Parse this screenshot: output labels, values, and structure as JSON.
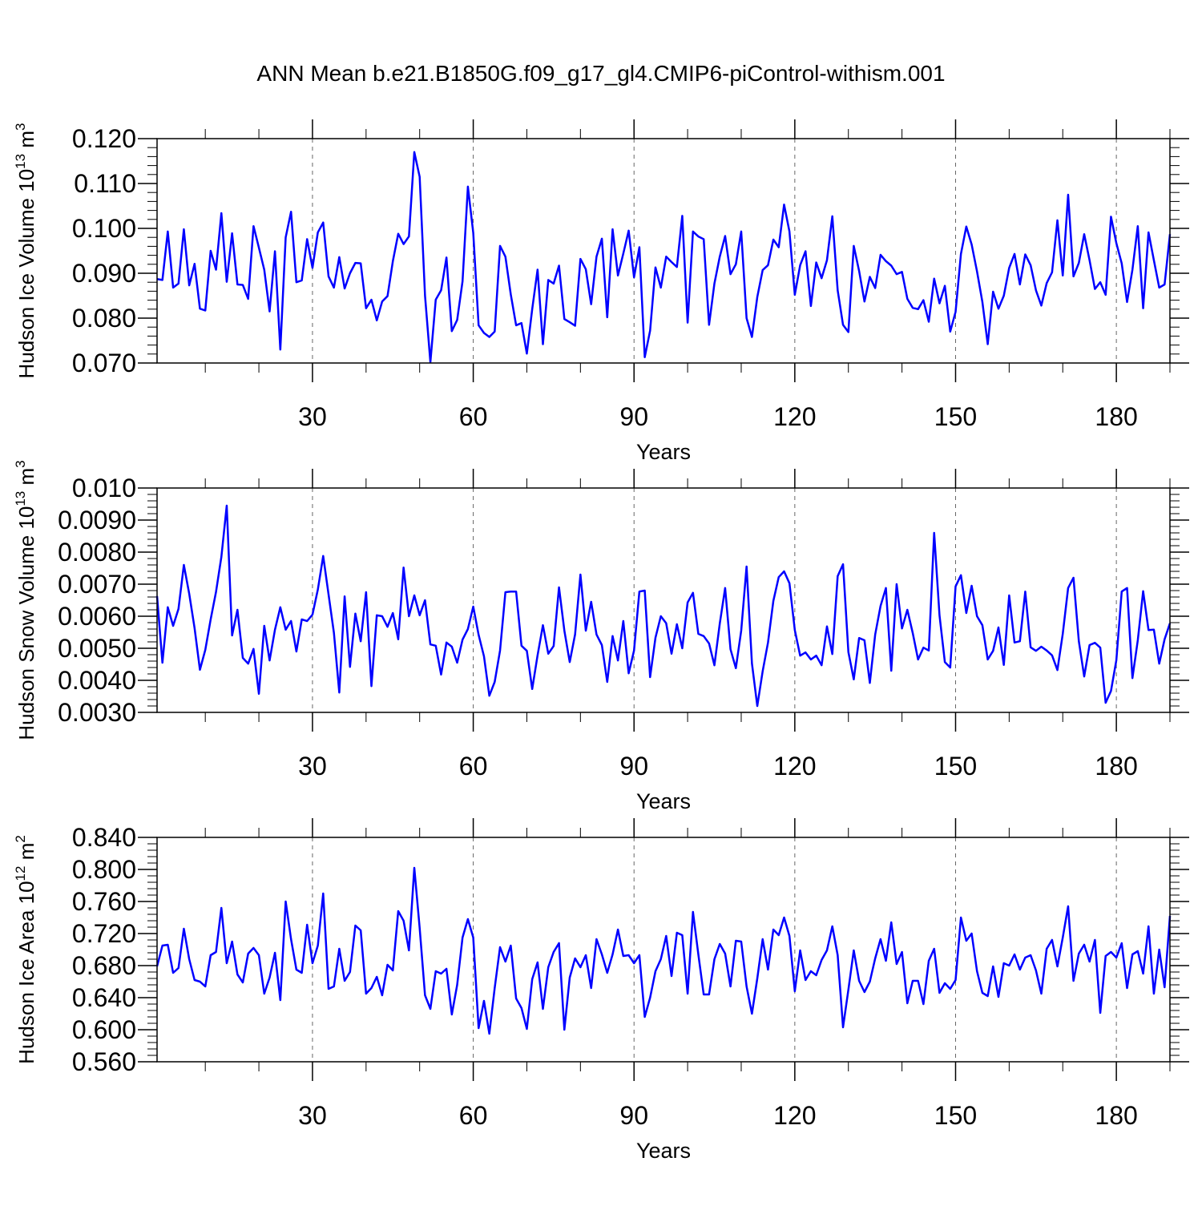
{
  "title": "ANN Mean b.e21.B1850G.f09_g17_gl4.CMIP6-piControl-withism.001",
  "line_color": "#0000ff",
  "chart_data": [
    {
      "type": "line",
      "ylabel": "Hudson Ice Volume",
      "yunit": {
        "base": "10",
        "exp": "13",
        "unit": "m",
        "unit_exp": "3"
      },
      "xlabel": "Years",
      "xlim": [
        1,
        190
      ],
      "ylim": [
        0.07,
        0.12
      ],
      "yticks": [
        0.07,
        0.08,
        0.09,
        0.1,
        0.11,
        0.12
      ],
      "ytick_labels": [
        "0.070",
        "0.080",
        "0.090",
        "0.100",
        "0.110",
        "0.120"
      ],
      "xticks": [
        30,
        60,
        90,
        120,
        150,
        180
      ],
      "xtick_labels": [
        "30",
        "60",
        "90",
        "120",
        "150",
        "180"
      ],
      "grid": "vertical dashed at major x ticks",
      "series": [
        {
          "values": [
            0.0887,
            0.0885,
            0.0993,
            0.0868,
            0.0877,
            0.0998,
            0.0873,
            0.0921,
            0.0821,
            0.0817,
            0.095,
            0.0908,
            0.1034,
            0.0881,
            0.0989,
            0.0875,
            0.0874,
            0.0843,
            0.1005,
            0.0957,
            0.0908,
            0.0815,
            0.0949,
            0.073,
            0.098,
            0.1037,
            0.088,
            0.0884,
            0.0976,
            0.0912,
            0.0991,
            0.1013,
            0.0893,
            0.0868,
            0.0936,
            0.0866,
            0.09,
            0.0923,
            0.0922,
            0.0822,
            0.0841,
            0.0795,
            0.0837,
            0.0849,
            0.0927,
            0.0988,
            0.0965,
            0.0982,
            0.117,
            0.1115,
            0.085,
            0.0702,
            0.0841,
            0.0862,
            0.0935,
            0.0771,
            0.0796,
            0.0882,
            0.1093,
            0.099,
            0.0784,
            0.0767,
            0.0758,
            0.077,
            0.0961,
            0.0937,
            0.0853,
            0.0784,
            0.0789,
            0.0721,
            0.082,
            0.0908,
            0.0742,
            0.0885,
            0.0877,
            0.0917,
            0.0798,
            0.0791,
            0.0783,
            0.0932,
            0.0909,
            0.0831,
            0.0937,
            0.0977,
            0.0802,
            0.0998,
            0.0895,
            0.0944,
            0.0995,
            0.0891,
            0.0958,
            0.0713,
            0.0772,
            0.0913,
            0.0868,
            0.0937,
            0.0925,
            0.0914,
            0.1028,
            0.079,
            0.0993,
            0.0982,
            0.0976,
            0.0785,
            0.0877,
            0.0937,
            0.0983,
            0.0898,
            0.092,
            0.0993,
            0.08,
            0.0758,
            0.0847,
            0.0907,
            0.0918,
            0.0975,
            0.0958,
            0.1053,
            0.0993,
            0.0852,
            0.0918,
            0.0949,
            0.0827,
            0.0924,
            0.0889,
            0.0929,
            0.1027,
            0.0862,
            0.0785,
            0.0769,
            0.0961,
            0.0905,
            0.0837,
            0.0892,
            0.0867,
            0.0941,
            0.0927,
            0.0917,
            0.0898,
            0.0903,
            0.0843,
            0.0823,
            0.082,
            0.084,
            0.0792,
            0.0888,
            0.0833,
            0.0872,
            0.077,
            0.0814,
            0.0943,
            0.1004,
            0.0964,
            0.0904,
            0.0836,
            0.0742,
            0.0859,
            0.0821,
            0.085,
            0.0912,
            0.0943,
            0.0875,
            0.0942,
            0.0918,
            0.0862,
            0.0828,
            0.0878,
            0.0902,
            0.1018,
            0.0895,
            0.1075,
            0.0893,
            0.0923,
            0.0987,
            0.0929,
            0.0865,
            0.088,
            0.0852,
            0.1026,
            0.0967,
            0.0922,
            0.0836,
            0.0908,
            0.1005,
            0.0822,
            0.0991,
            0.0929,
            0.0868,
            0.0875,
            0.0987
          ]
        }
      ]
    },
    {
      "type": "line",
      "ylabel": "Hudson Snow Volume",
      "yunit": {
        "base": "10",
        "exp": "13",
        "unit": "m",
        "unit_exp": "3"
      },
      "xlabel": "Years",
      "xlim": [
        1,
        190
      ],
      "ylim": [
        0.003,
        0.01
      ],
      "yticks": [
        0.003,
        0.004,
        0.005,
        0.006,
        0.007,
        0.008,
        0.009,
        0.01
      ],
      "ytick_labels": [
        "0.0030",
        "0.0040",
        "0.0050",
        "0.0060",
        "0.0070",
        "0.0080",
        "0.0090",
        "0.010"
      ],
      "xticks": [
        30,
        60,
        90,
        120,
        150,
        180
      ],
      "xtick_labels": [
        "30",
        "60",
        "90",
        "120",
        "150",
        "180"
      ],
      "grid": "vertical dashed at major x ticks",
      "series": [
        {
          "values": [
            0.00663,
            0.00455,
            0.00628,
            0.0057,
            0.00623,
            0.0076,
            0.0067,
            0.00563,
            0.00433,
            0.00495,
            0.0059,
            0.00676,
            0.00785,
            0.00945,
            0.0054,
            0.0062,
            0.0047,
            0.00452,
            0.00498,
            0.00358,
            0.0057,
            0.00462,
            0.00558,
            0.00628,
            0.00558,
            0.00585,
            0.0049,
            0.0059,
            0.00585,
            0.00605,
            0.00683,
            0.00788,
            0.00668,
            0.00548,
            0.00362,
            0.00662,
            0.00442,
            0.00608,
            0.00522,
            0.00675,
            0.00382,
            0.00603,
            0.006,
            0.00567,
            0.0061,
            0.00528,
            0.00752,
            0.006,
            0.00665,
            0.00603,
            0.0065,
            0.00512,
            0.00508,
            0.00418,
            0.00518,
            0.00505,
            0.00455,
            0.00527,
            0.0056,
            0.0063,
            0.00542,
            0.00475,
            0.00352,
            0.00395,
            0.00493,
            0.00675,
            0.00677,
            0.00677,
            0.00508,
            0.00492,
            0.00373,
            0.00478,
            0.00572,
            0.00483,
            0.00507,
            0.0069,
            0.00555,
            0.00457,
            0.00543,
            0.0073,
            0.00555,
            0.00645,
            0.00543,
            0.0051,
            0.00395,
            0.00538,
            0.00462,
            0.00585,
            0.00422,
            0.00493,
            0.00677,
            0.0068,
            0.0041,
            0.00533,
            0.006,
            0.00578,
            0.00483,
            0.00575,
            0.005,
            0.00643,
            0.00673,
            0.00545,
            0.00538,
            0.00515,
            0.00447,
            0.00577,
            0.00688,
            0.00497,
            0.00438,
            0.00555,
            0.00755,
            0.00453,
            0.0032,
            0.00428,
            0.00518,
            0.00648,
            0.00722,
            0.0074,
            0.00703,
            0.00557,
            0.00477,
            0.00487,
            0.00465,
            0.00477,
            0.00447,
            0.00568,
            0.00482,
            0.00725,
            0.00762,
            0.00488,
            0.00403,
            0.00532,
            0.00525,
            0.00392,
            0.00543,
            0.00632,
            0.00688,
            0.0043,
            0.007,
            0.00562,
            0.0062,
            0.00548,
            0.00465,
            0.00502,
            0.00493,
            0.0086,
            0.00603,
            0.00457,
            0.0044,
            0.00693,
            0.00728,
            0.0061,
            0.00695,
            0.006,
            0.00572,
            0.00465,
            0.00492,
            0.00565,
            0.00448,
            0.00665,
            0.00518,
            0.00522,
            0.00677,
            0.00503,
            0.00492,
            0.00505,
            0.00493,
            0.00478,
            0.00432,
            0.00545,
            0.00688,
            0.0072,
            0.00522,
            0.00412,
            0.0051,
            0.00517,
            0.00502,
            0.0033,
            0.00367,
            0.00463,
            0.00677,
            0.00688,
            0.00407,
            0.00525,
            0.00678,
            0.00557,
            0.00558,
            0.00452,
            0.00528,
            0.00578
          ]
        }
      ]
    },
    {
      "type": "line",
      "ylabel": "Hudson Ice Area",
      "yunit": {
        "base": "10",
        "exp": "12",
        "unit": "m",
        "unit_exp": "2"
      },
      "xlabel": "Years",
      "xlim": [
        1,
        190
      ],
      "ylim": [
        0.56,
        0.84
      ],
      "yticks": [
        0.56,
        0.6,
        0.64,
        0.68,
        0.72,
        0.76,
        0.8,
        0.84
      ],
      "ytick_labels": [
        "0.560",
        "0.600",
        "0.640",
        "0.680",
        "0.720",
        "0.760",
        "0.800",
        "0.840"
      ],
      "xticks": [
        30,
        60,
        90,
        120,
        150,
        180
      ],
      "xtick_labels": [
        "30",
        "60",
        "90",
        "120",
        "150",
        "180"
      ],
      "grid": "vertical dashed at major x ticks",
      "series": [
        {
          "values": [
            0.679,
            0.705,
            0.706,
            0.671,
            0.677,
            0.726,
            0.688,
            0.662,
            0.66,
            0.654,
            0.693,
            0.697,
            0.752,
            0.683,
            0.71,
            0.669,
            0.659,
            0.695,
            0.702,
            0.693,
            0.645,
            0.665,
            0.696,
            0.637,
            0.76,
            0.713,
            0.675,
            0.671,
            0.731,
            0.683,
            0.705,
            0.77,
            0.651,
            0.654,
            0.701,
            0.661,
            0.672,
            0.73,
            0.724,
            0.645,
            0.652,
            0.666,
            0.643,
            0.681,
            0.674,
            0.748,
            0.736,
            0.699,
            0.802,
            0.727,
            0.643,
            0.626,
            0.673,
            0.67,
            0.676,
            0.619,
            0.656,
            0.715,
            0.738,
            0.715,
            0.602,
            0.636,
            0.595,
            0.652,
            0.703,
            0.685,
            0.705,
            0.639,
            0.627,
            0.601,
            0.663,
            0.684,
            0.626,
            0.678,
            0.697,
            0.708,
            0.6,
            0.665,
            0.689,
            0.678,
            0.693,
            0.652,
            0.713,
            0.694,
            0.671,
            0.694,
            0.725,
            0.692,
            0.693,
            0.683,
            0.693,
            0.616,
            0.64,
            0.673,
            0.688,
            0.717,
            0.667,
            0.721,
            0.718,
            0.645,
            0.747,
            0.694,
            0.644,
            0.644,
            0.688,
            0.707,
            0.695,
            0.654,
            0.711,
            0.71,
            0.654,
            0.62,
            0.664,
            0.713,
            0.675,
            0.725,
            0.718,
            0.74,
            0.717,
            0.648,
            0.699,
            0.662,
            0.673,
            0.668,
            0.687,
            0.699,
            0.729,
            0.693,
            0.603,
            0.65,
            0.699,
            0.661,
            0.647,
            0.66,
            0.689,
            0.713,
            0.686,
            0.734,
            0.682,
            0.697,
            0.633,
            0.661,
            0.661,
            0.632,
            0.686,
            0.701,
            0.646,
            0.658,
            0.651,
            0.662,
            0.74,
            0.711,
            0.72,
            0.673,
            0.646,
            0.642,
            0.679,
            0.641,
            0.683,
            0.68,
            0.694,
            0.675,
            0.69,
            0.693,
            0.674,
            0.645,
            0.701,
            0.712,
            0.679,
            0.715,
            0.754,
            0.661,
            0.695,
            0.706,
            0.685,
            0.712,
            0.621,
            0.692,
            0.697,
            0.69,
            0.708,
            0.652,
            0.694,
            0.698,
            0.67,
            0.729,
            0.645,
            0.7,
            0.653,
            0.742
          ]
        }
      ]
    }
  ]
}
